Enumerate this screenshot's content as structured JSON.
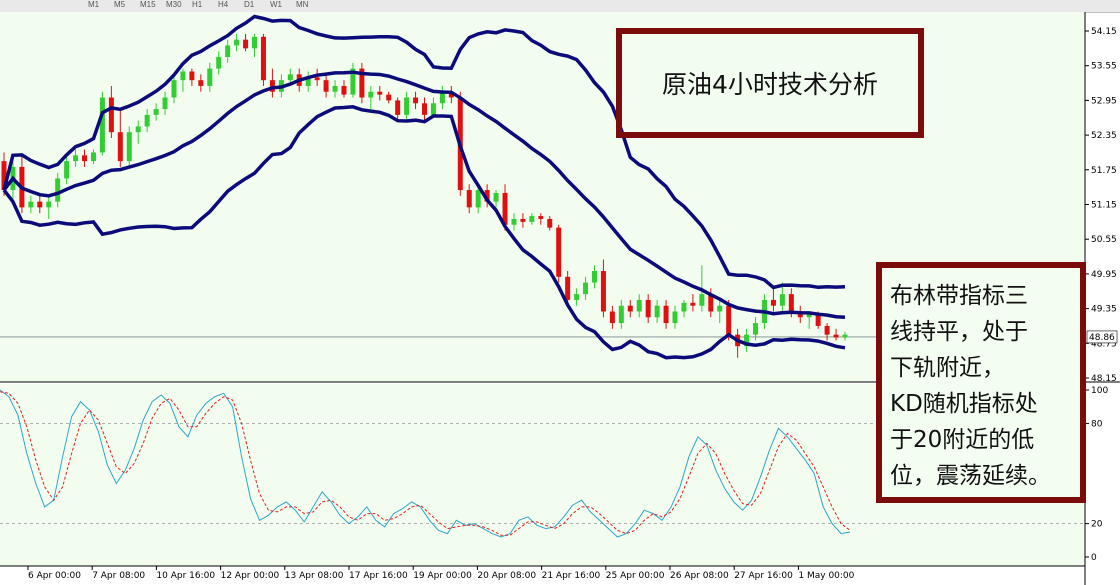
{
  "toolbar": {
    "timeframes": [
      "M1",
      "M5",
      "M15",
      "M30",
      "H1",
      "H4",
      "D1",
      "W1",
      "MN"
    ]
  },
  "annotations": {
    "title": "原油4小时技术分析",
    "note": "布林带指标三\n线持平，处于\n下轨附近，\nKD随机指标处\n于20附近的低\n位，震荡延续。"
  },
  "colors": {
    "background": "#f2fdf0",
    "bull_candle": "#32cd32",
    "bear_candle": "#e01010",
    "bollinger": "#0b0b7a",
    "stoch_main": "#2fa6c8",
    "stoch_signal": "#e02020",
    "annotation_border": "#7b0c0c"
  },
  "chart_data": [
    {
      "type": "candlestick",
      "indicator": "Bollinger Bands",
      "y_ticks": [
        "54.15",
        "53.55",
        "52.95",
        "52.35",
        "51.75",
        "51.15",
        "50.55",
        "49.95",
        "49.35",
        "48.75",
        "48.15"
      ],
      "ylim": [
        48.15,
        54.15
      ],
      "current_price": "48.86",
      "x_tick_labels": [
        "6 Apr 00:00",
        "7 Apr 08:00",
        "10 Apr 16:00",
        "12 Apr 00:00",
        "13 Apr 08:00",
        "17 Apr 16:00",
        "19 Apr 00:00",
        "20 Apr 08:00",
        "21 Apr 16:00",
        "25 Apr 00:00",
        "26 Apr 08:00",
        "27 Apr 16:00",
        "1 May 00:00"
      ],
      "candles": [
        [
          51.9,
          52.05,
          51.3,
          51.4
        ],
        [
          51.4,
          51.9,
          51.2,
          51.8
        ],
        [
          51.8,
          52.0,
          51.0,
          51.1
        ],
        [
          51.1,
          51.3,
          51.0,
          51.2
        ],
        [
          51.2,
          51.35,
          51.0,
          51.1
        ],
        [
          51.1,
          51.3,
          50.9,
          51.2
        ],
        [
          51.2,
          51.7,
          51.1,
          51.6
        ],
        [
          51.6,
          52.0,
          51.5,
          51.9
        ],
        [
          51.9,
          52.1,
          51.8,
          52.0
        ],
        [
          52.0,
          52.1,
          51.8,
          51.9
        ],
        [
          51.9,
          52.1,
          51.85,
          52.05
        ],
        [
          52.05,
          53.1,
          52.0,
          53.0
        ],
        [
          53.0,
          53.2,
          52.3,
          52.4
        ],
        [
          52.4,
          52.8,
          51.8,
          51.9
        ],
        [
          51.9,
          52.5,
          51.8,
          52.4
        ],
        [
          52.4,
          52.6,
          52.2,
          52.5
        ],
        [
          52.5,
          52.8,
          52.4,
          52.7
        ],
        [
          52.7,
          52.9,
          52.6,
          52.8
        ],
        [
          52.8,
          53.1,
          52.7,
          53.0
        ],
        [
          53.0,
          53.4,
          52.9,
          53.3
        ],
        [
          53.3,
          53.5,
          53.1,
          53.45
        ],
        [
          53.45,
          53.5,
          53.2,
          53.3
        ],
        [
          53.3,
          53.4,
          53.1,
          53.2
        ],
        [
          53.2,
          53.6,
          53.1,
          53.5
        ],
        [
          53.5,
          53.8,
          53.4,
          53.7
        ],
        [
          53.7,
          54.0,
          53.6,
          53.9
        ],
        [
          53.9,
          54.1,
          53.8,
          54.0
        ],
        [
          54.0,
          54.1,
          53.8,
          53.85
        ],
        [
          53.85,
          54.1,
          53.7,
          54.05
        ],
        [
          54.05,
          54.1,
          53.2,
          53.3
        ],
        [
          53.3,
          53.5,
          53.0,
          53.1
        ],
        [
          53.1,
          53.4,
          53.0,
          53.3
        ],
        [
          53.3,
          53.5,
          53.2,
          53.4
        ],
        [
          53.4,
          53.5,
          53.1,
          53.2
        ],
        [
          53.2,
          53.45,
          53.1,
          53.35
        ],
        [
          53.35,
          53.5,
          53.2,
          53.3
        ],
        [
          53.3,
          53.4,
          53.0,
          53.1
        ],
        [
          53.1,
          53.3,
          53.0,
          53.2
        ],
        [
          53.2,
          53.3,
          53.0,
          53.05
        ],
        [
          53.05,
          53.6,
          53.0,
          53.5
        ],
        [
          53.5,
          53.6,
          52.9,
          53.0
        ],
        [
          53.0,
          53.2,
          52.8,
          53.1
        ],
        [
          53.1,
          53.2,
          52.95,
          53.05
        ],
        [
          53.05,
          53.1,
          52.9,
          52.95
        ],
        [
          52.95,
          53.0,
          52.6,
          52.7
        ],
        [
          52.7,
          53.1,
          52.6,
          53.0
        ],
        [
          53.0,
          53.1,
          52.8,
          52.9
        ],
        [
          52.9,
          53.0,
          52.6,
          52.7
        ],
        [
          52.7,
          53.0,
          52.65,
          52.9
        ],
        [
          52.9,
          53.2,
          52.8,
          53.1
        ],
        [
          53.1,
          53.2,
          52.9,
          53.0
        ],
        [
          53.0,
          53.1,
          51.3,
          51.4
        ],
        [
          51.4,
          51.5,
          51.0,
          51.1
        ],
        [
          51.1,
          51.5,
          51.0,
          51.4
        ],
        [
          51.4,
          51.5,
          51.1,
          51.2
        ],
        [
          51.2,
          51.4,
          51.1,
          51.35
        ],
        [
          51.35,
          51.5,
          50.7,
          50.8
        ],
        [
          50.8,
          51.0,
          50.7,
          50.9
        ],
        [
          50.9,
          51.0,
          50.75,
          50.85
        ],
        [
          50.85,
          51.0,
          50.8,
          50.95
        ],
        [
          50.95,
          51.0,
          50.8,
          50.9
        ],
        [
          50.9,
          50.95,
          50.7,
          50.75
        ],
        [
          50.75,
          50.8,
          49.8,
          49.9
        ],
        [
          49.9,
          50.0,
          49.4,
          49.5
        ],
        [
          49.5,
          49.7,
          49.4,
          49.6
        ],
        [
          49.6,
          49.9,
          49.5,
          49.8
        ],
        [
          49.8,
          50.1,
          49.7,
          50.0
        ],
        [
          50.0,
          50.2,
          49.2,
          49.3
        ],
        [
          49.3,
          49.4,
          49.0,
          49.1
        ],
        [
          49.1,
          49.5,
          49.0,
          49.4
        ],
        [
          49.4,
          49.5,
          49.2,
          49.3
        ],
        [
          49.3,
          49.6,
          49.2,
          49.5
        ],
        [
          49.5,
          49.6,
          49.1,
          49.2
        ],
        [
          49.2,
          49.5,
          49.1,
          49.4
        ],
        [
          49.4,
          49.5,
          49.0,
          49.1
        ],
        [
          49.1,
          49.4,
          49.0,
          49.3
        ],
        [
          49.3,
          49.5,
          49.2,
          49.45
        ],
        [
          49.45,
          49.6,
          49.3,
          49.4
        ],
        [
          49.4,
          50.1,
          49.3,
          49.6
        ],
        [
          49.6,
          49.7,
          49.2,
          49.3
        ],
        [
          49.3,
          49.5,
          49.1,
          49.4
        ],
        [
          49.4,
          49.5,
          48.8,
          48.9
        ],
        [
          48.9,
          49.0,
          48.5,
          48.7
        ],
        [
          48.7,
          49.0,
          48.6,
          48.9
        ],
        [
          48.9,
          49.2,
          48.8,
          49.1
        ],
        [
          49.1,
          49.6,
          49.0,
          49.5
        ],
        [
          49.5,
          49.7,
          49.3,
          49.4
        ],
        [
          49.4,
          49.8,
          49.3,
          49.6
        ],
        [
          49.6,
          49.7,
          49.2,
          49.3
        ],
        [
          49.3,
          49.4,
          49.1,
          49.2
        ],
        [
          49.2,
          49.3,
          49.0,
          49.25
        ],
        [
          49.25,
          49.3,
          49.0,
          49.05
        ],
        [
          49.05,
          49.1,
          48.8,
          48.9
        ],
        [
          48.9,
          49.0,
          48.8,
          48.85
        ],
        [
          48.85,
          48.95,
          48.8,
          48.9
        ]
      ]
    },
    {
      "type": "line",
      "indicator": "Stochastic Oscillator (KD)",
      "y_ticks": [
        "100",
        "80",
        "20",
        "0"
      ],
      "ylim": [
        0,
        100
      ],
      "levels": [
        80,
        20
      ],
      "series": [
        {
          "role": "main",
          "values": [
            100,
            96,
            85,
            62,
            44,
            30,
            34,
            60,
            84,
            93,
            88,
            75,
            55,
            44,
            52,
            65,
            82,
            93,
            97,
            92,
            78,
            72,
            85,
            92,
            96,
            98,
            90,
            60,
            35,
            22,
            25,
            30,
            33,
            28,
            21,
            30,
            39,
            33,
            25,
            20,
            24,
            30,
            22,
            18,
            26,
            29,
            33,
            30,
            22,
            16,
            14,
            22,
            19,
            20,
            17,
            14,
            12,
            14,
            22,
            24,
            19,
            17,
            18,
            24,
            31,
            34,
            27,
            22,
            17,
            12,
            14,
            20,
            28,
            26,
            22,
            30,
            42,
            60,
            72,
            67,
            52,
            41,
            33,
            28,
            34,
            48,
            64,
            77,
            72,
            65,
            58,
            50,
            30,
            20,
            14,
            15
          ]
        },
        {
          "role": "signal",
          "values": [
            99,
            98,
            92,
            78,
            58,
            42,
            34,
            42,
            62,
            80,
            88,
            82,
            68,
            54,
            50,
            56,
            68,
            83,
            92,
            95,
            88,
            78,
            78,
            86,
            92,
            96,
            94,
            80,
            58,
            38,
            28,
            27,
            30,
            30,
            26,
            27,
            33,
            34,
            30,
            24,
            22,
            26,
            26,
            22,
            23,
            26,
            30,
            31,
            26,
            21,
            17,
            18,
            19,
            19,
            18,
            16,
            13,
            13,
            17,
            21,
            21,
            19,
            17,
            20,
            26,
            30,
            30,
            26,
            21,
            16,
            14,
            16,
            22,
            26,
            24,
            27,
            35,
            48,
            62,
            68,
            62,
            50,
            40,
            32,
            31,
            38,
            52,
            66,
            74,
            70,
            62,
            54,
            42,
            30,
            20,
            16
          ]
        }
      ]
    }
  ]
}
